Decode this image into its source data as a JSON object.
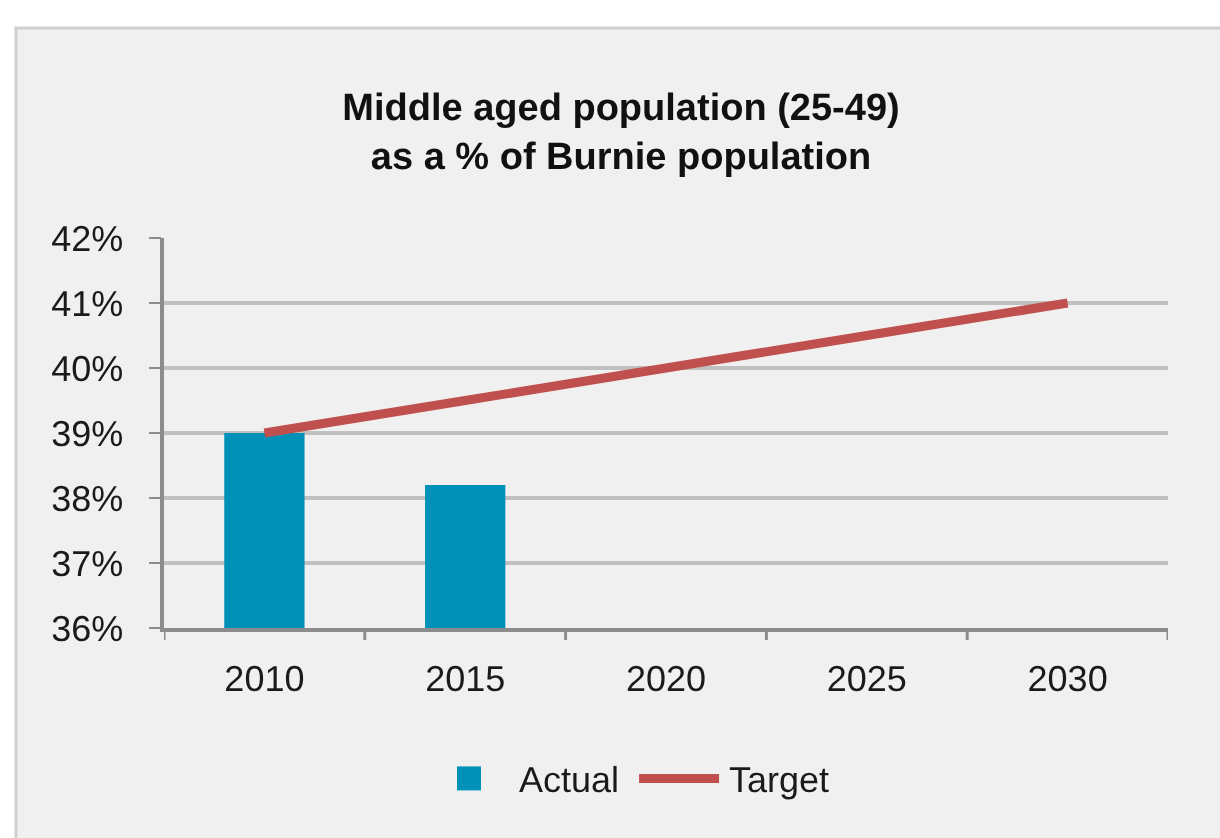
{
  "chart_data": {
    "type": "bar",
    "title": "Middle aged population (25-49)\nas a % of Burnie population",
    "categories": [
      "2010",
      "2015",
      "2020",
      "2025",
      "2030"
    ],
    "series": [
      {
        "name": "Actual",
        "color": "#0091b8",
        "values": [
          39.0,
          38.2,
          null,
          null,
          null
        ]
      },
      {
        "name": "Target",
        "type": "line",
        "color": "#c0504d",
        "values": [
          39.0,
          39.5,
          40.0,
          40.5,
          41.0
        ]
      }
    ],
    "ylim": [
      36,
      42
    ],
    "yticks": [
      {
        "value": 36,
        "label": "36%"
      },
      {
        "value": 37,
        "label": "37%"
      },
      {
        "value": 38,
        "label": "38%"
      },
      {
        "value": 39,
        "label": "39%"
      },
      {
        "value": 40,
        "label": "40%"
      },
      {
        "value": 41,
        "label": "41%"
      },
      {
        "value": 42,
        "label": "42%"
      }
    ],
    "grid": "y",
    "legend": "bottom",
    "marker": "none",
    "line_style": "solid"
  }
}
